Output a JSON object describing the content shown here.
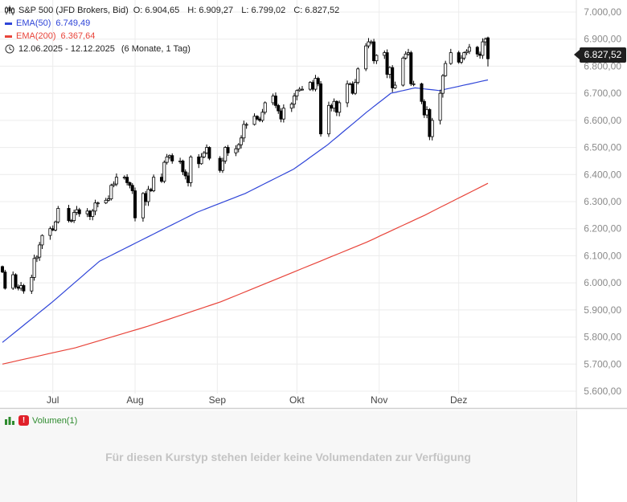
{
  "legend": {
    "instrument": "S&P 500 (JFD Brokers, Bid)",
    "ohlc": {
      "o": "O: 6.904,65",
      "h": "H: 6.909,27",
      "l": "L: 6.799,02",
      "c": "C: 6.827,52"
    },
    "ema50_label": "EMA(50)",
    "ema50_value": "6.749,49",
    "ema200_label": "EMA(200)",
    "ema200_value": "6.367,64",
    "range": "12.06.2025 - 12.12.2025",
    "range_detail": "(6 Monate, 1 Tag)"
  },
  "last_price_tag": "6.827,52",
  "volume_pane": {
    "title": "Volumen(1)",
    "message": "Für diesen Kurstyp stehen leider keine Volumendaten zur Verfügung"
  },
  "colors": {
    "ema50": "#2f45d8",
    "ema200": "#e8443a",
    "candle": "#000000",
    "grid": "#ececec",
    "volume_title": "#2e8b2e"
  },
  "icons": [
    "candlestick-chart-icon",
    "clock-icon",
    "bar-chart-icon",
    "warning-icon"
  ],
  "chart_data": {
    "type": "candlestick",
    "title": "S&P 500 (JFD Brokers, Bid)",
    "xlabel": "",
    "ylabel": "",
    "ylim": [
      5550,
      7030
    ],
    "x_range": [
      "2025-06-12",
      "2025-12-12"
    ],
    "y_ticks": [
      "7.000,00",
      "6.900,00",
      "6.800,00",
      "6.700,00",
      "6.600,00",
      "6.500,00",
      "6.400,00",
      "6.300,00",
      "6.200,00",
      "6.100,00",
      "6.000,00",
      "5.900,00",
      "5.800,00",
      "5.700,00",
      "5.600,00"
    ],
    "y_tick_values": [
      7000,
      6900,
      6800,
      6700,
      6600,
      6500,
      6400,
      6300,
      6200,
      6100,
      6000,
      5900,
      5800,
      5700,
      5600
    ],
    "x_ticks": [
      {
        "label": "Jul",
        "date": "2025-07-01"
      },
      {
        "label": "Aug",
        "date": "2025-08-01"
      },
      {
        "label": "Sep",
        "date": "2025-09-01"
      },
      {
        "label": "Okt",
        "date": "2025-10-01"
      },
      {
        "label": "Nov",
        "date": "2025-11-01"
      },
      {
        "label": "Dez",
        "date": "2025-12-01"
      }
    ],
    "grid": true,
    "close_series": [
      [
        "2025-06-12",
        6040
      ],
      [
        "2025-06-13",
        5980
      ],
      [
        "2025-06-16",
        6030
      ],
      [
        "2025-06-17",
        5985
      ],
      [
        "2025-06-18",
        5980
      ],
      [
        "2025-06-19",
        5990
      ],
      [
        "2025-06-20",
        5970
      ],
      [
        "2025-06-23",
        6020
      ],
      [
        "2025-06-24",
        6090
      ],
      [
        "2025-06-25",
        6095
      ],
      [
        "2025-06-26",
        6140
      ],
      [
        "2025-06-27",
        6175
      ],
      [
        "2025-06-30",
        6200
      ],
      [
        "2025-07-01",
        6195
      ],
      [
        "2025-07-02",
        6225
      ],
      [
        "2025-07-03",
        6275
      ],
      [
        "2025-07-07",
        6230
      ],
      [
        "2025-07-08",
        6230
      ],
      [
        "2025-07-09",
        6260
      ],
      [
        "2025-07-10",
        6270
      ],
      [
        "2025-07-11",
        6255
      ],
      [
        "2025-07-14",
        6265
      ],
      [
        "2025-07-15",
        6245
      ],
      [
        "2025-07-16",
        6265
      ],
      [
        "2025-07-17",
        6295
      ],
      [
        "2025-07-18",
        6295
      ],
      [
        "2025-07-21",
        6305
      ],
      [
        "2025-07-22",
        6310
      ],
      [
        "2025-07-23",
        6360
      ],
      [
        "2025-07-24",
        6365
      ],
      [
        "2025-07-25",
        6390
      ],
      [
        "2025-07-28",
        6390
      ],
      [
        "2025-07-29",
        6370
      ],
      [
        "2025-07-30",
        6360
      ],
      [
        "2025-07-31",
        6340
      ],
      [
        "2025-08-01",
        6240
      ],
      [
        "2025-08-04",
        6330
      ],
      [
        "2025-08-05",
        6300
      ],
      [
        "2025-08-06",
        6345
      ],
      [
        "2025-08-07",
        6340
      ],
      [
        "2025-08-08",
        6390
      ],
      [
        "2025-08-11",
        6375
      ],
      [
        "2025-08-12",
        6445
      ],
      [
        "2025-08-13",
        6465
      ],
      [
        "2025-08-14",
        6470
      ],
      [
        "2025-08-15",
        6450
      ],
      [
        "2025-08-18",
        6450
      ],
      [
        "2025-08-19",
        6410
      ],
      [
        "2025-08-20",
        6395
      ],
      [
        "2025-08-21",
        6370
      ],
      [
        "2025-08-22",
        6465
      ],
      [
        "2025-08-25",
        6440
      ],
      [
        "2025-08-26",
        6465
      ],
      [
        "2025-08-27",
        6480
      ],
      [
        "2025-08-28",
        6500
      ],
      [
        "2025-08-29",
        6460
      ],
      [
        "2025-09-02",
        6415
      ],
      [
        "2025-09-03",
        6450
      ],
      [
        "2025-09-04",
        6500
      ],
      [
        "2025-09-05",
        6480
      ],
      [
        "2025-09-08",
        6495
      ],
      [
        "2025-09-09",
        6510
      ],
      [
        "2025-09-10",
        6535
      ],
      [
        "2025-09-11",
        6585
      ],
      [
        "2025-09-12",
        6585
      ],
      [
        "2025-09-15",
        6615
      ],
      [
        "2025-09-16",
        6605
      ],
      [
        "2025-09-17",
        6600
      ],
      [
        "2025-09-18",
        6630
      ],
      [
        "2025-09-19",
        6665
      ],
      [
        "2025-09-22",
        6690
      ],
      [
        "2025-09-23",
        6655
      ],
      [
        "2025-09-24",
        6635
      ],
      [
        "2025-09-25",
        6605
      ],
      [
        "2025-09-26",
        6645
      ],
      [
        "2025-09-29",
        6660
      ],
      [
        "2025-09-30",
        6690
      ],
      [
        "2025-10-01",
        6710
      ],
      [
        "2025-10-02",
        6715
      ],
      [
        "2025-10-03",
        6715
      ],
      [
        "2025-10-06",
        6740
      ],
      [
        "2025-10-07",
        6715
      ],
      [
        "2025-10-08",
        6755
      ],
      [
        "2025-10-09",
        6735
      ],
      [
        "2025-10-10",
        6550
      ],
      [
        "2025-10-13",
        6655
      ],
      [
        "2025-10-14",
        6645
      ],
      [
        "2025-10-15",
        6670
      ],
      [
        "2025-10-16",
        6630
      ],
      [
        "2025-10-17",
        6665
      ],
      [
        "2025-10-20",
        6735
      ],
      [
        "2025-10-21",
        6735
      ],
      [
        "2025-10-22",
        6700
      ],
      [
        "2025-10-23",
        6740
      ],
      [
        "2025-10-24",
        6790
      ],
      [
        "2025-10-27",
        6875
      ],
      [
        "2025-10-28",
        6890
      ],
      [
        "2025-10-29",
        6890
      ],
      [
        "2025-10-30",
        6820
      ],
      [
        "2025-10-31",
        6840
      ],
      [
        "2025-11-03",
        6850
      ],
      [
        "2025-11-04",
        6770
      ],
      [
        "2025-11-05",
        6795
      ],
      [
        "2025-11-06",
        6720
      ],
      [
        "2025-11-07",
        6730
      ],
      [
        "2025-11-10",
        6830
      ],
      [
        "2025-11-11",
        6845
      ],
      [
        "2025-11-12",
        6850
      ],
      [
        "2025-11-13",
        6735
      ],
      [
        "2025-11-14",
        6735
      ],
      [
        "2025-11-17",
        6670
      ],
      [
        "2025-11-18",
        6620
      ],
      [
        "2025-11-19",
        6640
      ],
      [
        "2025-11-20",
        6540
      ],
      [
        "2025-11-21",
        6600
      ],
      [
        "2025-11-24",
        6700
      ],
      [
        "2025-11-25",
        6765
      ],
      [
        "2025-11-26",
        6810
      ],
      [
        "2025-11-28",
        6850
      ],
      [
        "2025-12-01",
        6815
      ],
      [
        "2025-12-02",
        6830
      ],
      [
        "2025-12-03",
        6850
      ],
      [
        "2025-12-04",
        6855
      ],
      [
        "2025-12-05",
        6870
      ],
      [
        "2025-12-08",
        6845
      ],
      [
        "2025-12-09",
        6840
      ],
      [
        "2025-12-10",
        6890
      ],
      [
        "2025-12-11",
        6900
      ],
      [
        "2025-12-12",
        6827.52
      ]
    ],
    "last_candle": {
      "o": 6904.65,
      "h": 6909.27,
      "l": 6799.02,
      "c": 6827.52
    },
    "series": [
      {
        "name": "EMA(50)",
        "last": 6749.49,
        "values": [
          [
            0,
            5780
          ],
          [
            0.1,
            5925
          ],
          [
            0.2,
            6080
          ],
          [
            0.3,
            6170
          ],
          [
            0.4,
            6260
          ],
          [
            0.5,
            6330
          ],
          [
            0.6,
            6420
          ],
          [
            0.67,
            6510
          ],
          [
            0.75,
            6630
          ],
          [
            0.8,
            6700
          ],
          [
            0.85,
            6720
          ],
          [
            0.9,
            6710
          ],
          [
            1,
            6749.49
          ]
        ]
      },
      {
        "name": "EMA(200)",
        "last": 6367.64,
        "values": [
          [
            0,
            5700
          ],
          [
            0.15,
            5760
          ],
          [
            0.3,
            5840
          ],
          [
            0.45,
            5930
          ],
          [
            0.6,
            6040
          ],
          [
            0.75,
            6150
          ],
          [
            0.87,
            6250
          ],
          [
            1,
            6367.64
          ]
        ]
      }
    ]
  }
}
